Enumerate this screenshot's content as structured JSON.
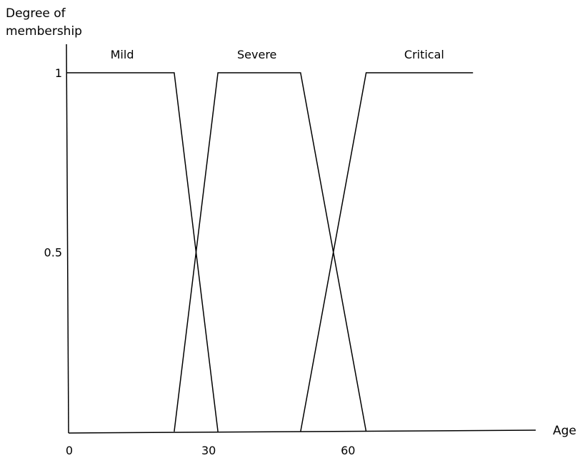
{
  "chart_data": {
    "type": "line",
    "ylabel_lines": [
      "Degree of",
      "membership"
    ],
    "xlabel": "Age",
    "x_ticks": [
      {
        "value": 0,
        "label": "0"
      },
      {
        "value": 30,
        "label": "30"
      },
      {
        "value": 60,
        "label": "60"
      }
    ],
    "y_ticks": [
      {
        "value": 0.5,
        "label": "0.5"
      },
      {
        "value": 1,
        "label": "1"
      }
    ],
    "xlim": [
      0,
      101
    ],
    "ylim": [
      0,
      1
    ],
    "grid": false,
    "legend": "none",
    "line_color": "#000000",
    "series": [
      {
        "name": "Mild",
        "label_at": 12,
        "points": [
          [
            0,
            1
          ],
          [
            23.2,
            1
          ],
          [
            32.6,
            0
          ]
        ]
      },
      {
        "name": "Severe",
        "label_at": 41,
        "points": [
          [
            23.2,
            0
          ],
          [
            32.6,
            1
          ],
          [
            50.4,
            1
          ],
          [
            64.5,
            0
          ]
        ]
      },
      {
        "name": "Critical",
        "label_at": 77,
        "points": [
          [
            50.4,
            0
          ],
          [
            64.5,
            1
          ],
          [
            87.5,
            1
          ]
        ]
      }
    ]
  }
}
